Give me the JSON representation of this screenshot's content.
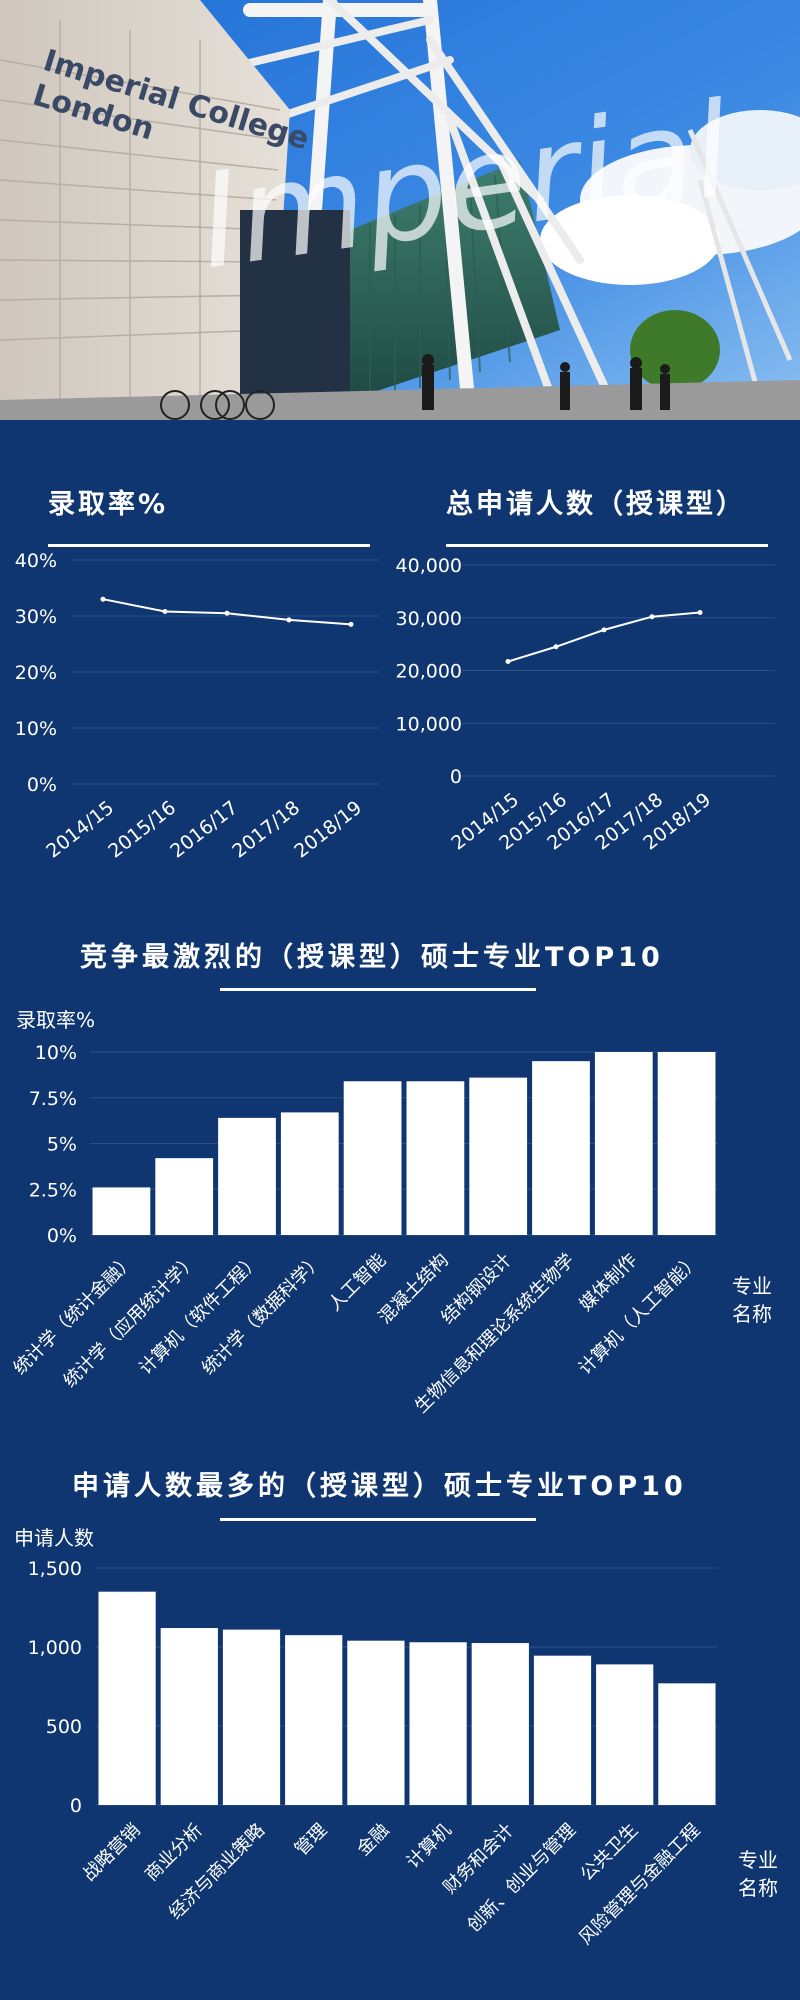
{
  "hero": {
    "sign_line1": "Imperial College",
    "sign_line2": "London",
    "overlay_script": "Imperial"
  },
  "panels": {
    "admission_rate_title": "录取率%",
    "applicants_title": "总申请人数（授课型）",
    "competitive_title": "竞争最激烈的（授课型）硕士专业TOP10",
    "competitive_ylabel": "录取率%",
    "competitive_xunit_line1": "专业",
    "competitive_xunit_line2": "名称",
    "popular_title": "申请人数最多的（授课型）硕士专业TOP10",
    "popular_ylabel": "申请人数",
    "popular_xunit_line1": "专业",
    "popular_xunit_line2": "名称"
  },
  "chart_data": [
    {
      "id": "admission",
      "type": "line",
      "title": "录取率%",
      "x": [
        "2014/15",
        "2015/16",
        "2016/17",
        "2017/18",
        "2018/19"
      ],
      "series": [
        {
          "values": [
            33,
            30.8,
            30.5,
            29.3,
            28.5
          ]
        }
      ],
      "ylim": [
        0,
        40
      ],
      "yticks": [
        "0%",
        "10%",
        "20%",
        "30%",
        "40%"
      ],
      "ytick_values": [
        0,
        10,
        20,
        30,
        40
      ],
      "grid": true
    },
    {
      "id": "applicants",
      "type": "line",
      "title": "总申请人数（授课型）",
      "x": [
        "2014/15",
        "2015/16",
        "2016/17",
        "2017/18",
        "2018/19"
      ],
      "series": [
        {
          "values": [
            21700,
            24500,
            27700,
            30200,
            31000
          ]
        }
      ],
      "ylim": [
        0,
        40000
      ],
      "yticks": [
        "0",
        "10,000",
        "20,000",
        "30,000",
        "40,000"
      ],
      "ytick_values": [
        0,
        10000,
        20000,
        30000,
        40000
      ],
      "grid": true
    },
    {
      "id": "competitive",
      "type": "bar",
      "title": "竞争最激烈的（授课型）硕士专业TOP10",
      "ylabel": "录取率%",
      "xlabel": "专业名称",
      "categories": [
        "统计学（统计金融）",
        "统计学（应用统计学）",
        "计算机（软件工程）",
        "统计学（数据科学）",
        "人工智能",
        "混凝土结构",
        "结构钢设计",
        "生物信息和理论系统生物学",
        "媒体制作",
        "计算机（人工智能）"
      ],
      "values": [
        2.6,
        4.2,
        6.4,
        6.7,
        8.4,
        8.4,
        8.6,
        9.5,
        10.0,
        10.0
      ],
      "ylim": [
        0,
        10
      ],
      "yticks": [
        "0%",
        "2.5%",
        "5%",
        "7.5%",
        "10%"
      ],
      "ytick_values": [
        0,
        2.5,
        5,
        7.5,
        10
      ],
      "grid": true
    },
    {
      "id": "popular",
      "type": "bar",
      "title": "申请人数最多的（授课型）硕士专业TOP10",
      "ylabel": "申请人数",
      "xlabel": "专业名称",
      "categories": [
        "战略营销",
        "商业分析",
        "经济与商业策略",
        "管理",
        "金融",
        "计算机",
        "财务和会计",
        "创新、创业与管理",
        "公共卫生",
        "风险管理与金融工程"
      ],
      "values": [
        1350,
        1120,
        1110,
        1075,
        1040,
        1030,
        1025,
        945,
        890,
        770
      ],
      "ylim": [
        0,
        1500
      ],
      "yticks": [
        "0",
        "500",
        "1,000",
        "1,500"
      ],
      "ytick_values": [
        0,
        500,
        1000,
        1500
      ],
      "grid": true
    }
  ]
}
